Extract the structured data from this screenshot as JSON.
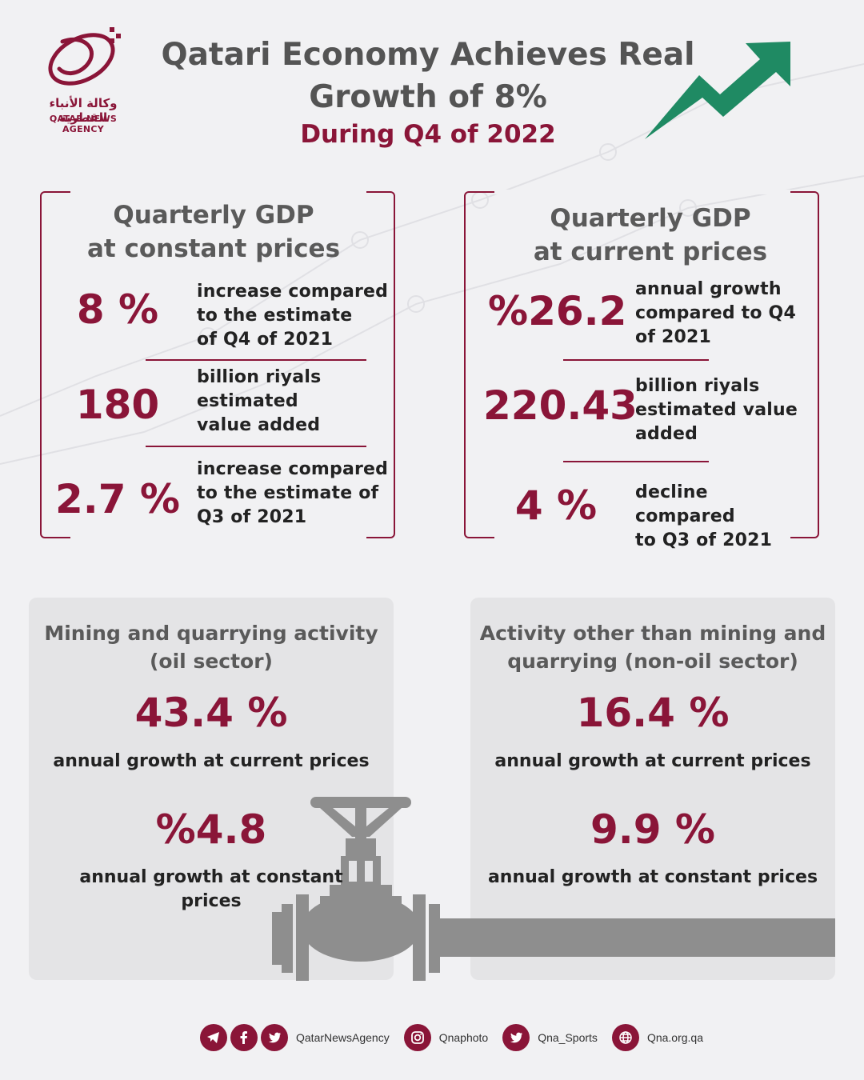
{
  "header": {
    "logo_arabic": "وكالة الأنباء القطرية",
    "logo_english": "QATAR NEWS AGENCY",
    "title_line1": "Qatari Economy Achieves Real",
    "title_line2": "Growth of 8%",
    "subtitle": "During Q4 of 2022"
  },
  "constant_box": {
    "title_line1": "Quarterly GDP",
    "title_line2": "at constant prices",
    "stats": [
      {
        "value": "8 %",
        "desc": [
          "increase compared",
          "to the estimate",
          "of Q4 of 2021"
        ]
      },
      {
        "value": "180",
        "desc": [
          "billion riyals",
          "estimated",
          "value added"
        ]
      },
      {
        "value": "2.7 %",
        "desc": [
          "increase compared",
          "to the estimate of",
          "Q3 of 2021"
        ]
      }
    ]
  },
  "current_box": {
    "title_line1": "Quarterly GDP",
    "title_line2": "at current prices",
    "stats": [
      {
        "value": "%26.2",
        "desc": [
          "annual growth",
          "compared to Q4",
          "of 2021"
        ]
      },
      {
        "value": "220.43",
        "desc": [
          "billion riyals",
          "estimated value",
          "added"
        ]
      },
      {
        "value": "4 %",
        "desc": [
          "decline compared",
          "to Q3 of 2021"
        ]
      }
    ]
  },
  "oil_panel": {
    "title_line1": "Mining and quarrying activity",
    "title_line2": "(oil sector)",
    "value1": "43.4 %",
    "desc1": "annual growth at current prices",
    "value2": "%4.8",
    "desc2_line1": "annual growth at constant",
    "desc2_line2": "prices"
  },
  "nonoil_panel": {
    "title_line1": "Activity other than mining and",
    "title_line2": "quarrying (non-oil sector)",
    "value1": "16.4 %",
    "desc1": "annual growth at current prices",
    "value2": "9.9 %",
    "desc2": "annual growth at constant prices"
  },
  "footer": {
    "handle1": "QatarNewsAgency",
    "handle2": "Qnaphoto",
    "handle3": "Qna_Sports",
    "handle4": "Qna.org.qa"
  },
  "colors": {
    "accent": "#8a1538",
    "arrow": "#1f8a63",
    "panel": "#e4e4e6",
    "pipe": "#8e8e8e"
  }
}
